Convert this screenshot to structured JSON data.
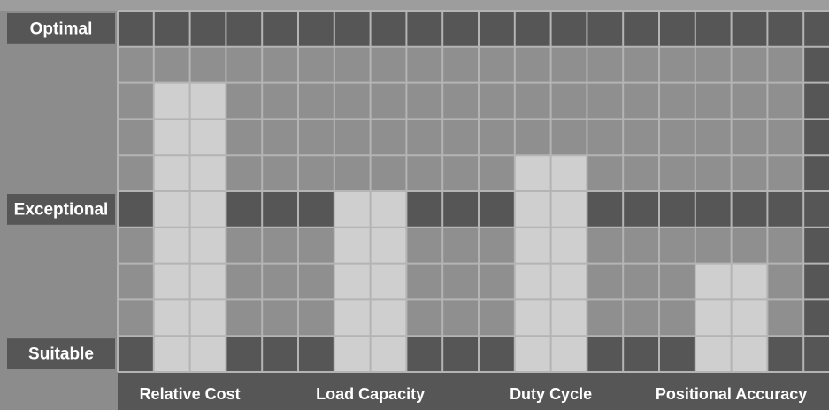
{
  "chart_data": {
    "type": "bar",
    "categories": [
      "Relative Cost",
      "Load Capacity",
      "Duty Cycle",
      "Positional Accuracy"
    ],
    "values": [
      8,
      5,
      6,
      3
    ],
    "color": "#cfcfcf",
    "ylim": [
      0,
      10
    ],
    "yticks": [
      {
        "value": 1,
        "label": "Suitable"
      },
      {
        "value": 5,
        "label": "Exceptional"
      },
      {
        "value": 10,
        "label": "Optimal"
      }
    ],
    "grid": true
  }
}
